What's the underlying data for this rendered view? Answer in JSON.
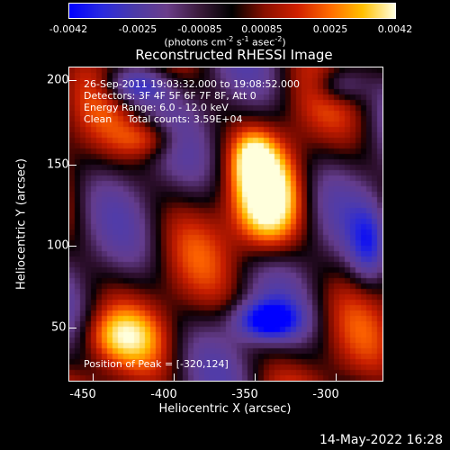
{
  "colorbar": {
    "ticks": [
      "-0.0042",
      "-0.0025",
      "-0.00085",
      "0.00085",
      "0.0025",
      "0.0042"
    ],
    "units": "(photons cm",
    "units_exp1": "-2",
    "units_mid1": " s",
    "units_exp2": "-1",
    "units_mid2": " asec",
    "units_exp3": "-2",
    "units_end": ")"
  },
  "title": "Reconstructed RHESSI Image",
  "annotations": {
    "time_range": "26-Sep-2011 19:03:32.000 to 19:08:52.000",
    "detectors": "Detectors: 3F 4F 5F 6F 7F 8F, Att 0",
    "energy": "Energy Range: 6.0 - 12.0 keV",
    "clean": "Clean     Total counts: 3.59E+04",
    "peak": "Position of Peak = [-320,124]"
  },
  "axes": {
    "xlabel": "Heliocentric X (arcsec)",
    "ylabel": "Heliocentric Y (arcsec)",
    "xticks": [
      "-450",
      "-400",
      "-350",
      "-300"
    ],
    "yticks": [
      "200",
      "150",
      "100",
      "50"
    ],
    "xrange": [
      -465,
      -270
    ],
    "yrange": [
      15,
      210
    ]
  },
  "timestamp": "14-May-2022 16:28"
}
